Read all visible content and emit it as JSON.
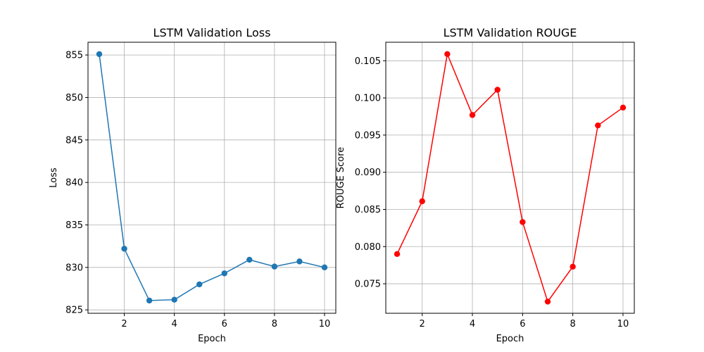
{
  "chart_data": [
    {
      "type": "line",
      "title": "LSTM Validation Loss",
      "xlabel": "Epoch",
      "ylabel": "Loss",
      "x": [
        1,
        2,
        3,
        4,
        5,
        6,
        7,
        8,
        9,
        10
      ],
      "series": [
        {
          "values": [
            855.1,
            832.2,
            826.1,
            826.2,
            828.0,
            829.3,
            830.9,
            830.1,
            830.7,
            830.0
          ],
          "color": "#1f77b4"
        }
      ],
      "xlim": [
        0.55,
        10.45
      ],
      "ylim": [
        824.6,
        856.5
      ],
      "xticks": [
        "2",
        "4",
        "6",
        "8",
        "10"
      ],
      "yticks": [
        "825",
        "830",
        "835",
        "840",
        "845",
        "850",
        "855"
      ],
      "grid": true
    },
    {
      "type": "line",
      "title": "LSTM Validation ROUGE",
      "xlabel": "Epoch",
      "ylabel": "ROUGE Score",
      "x": [
        1,
        2,
        3,
        4,
        5,
        6,
        7,
        8,
        9,
        10
      ],
      "series": [
        {
          "values": [
            0.079,
            0.0861,
            0.1059,
            0.0977,
            0.1011,
            0.0833,
            0.0726,
            0.0773,
            0.0963,
            0.0987
          ],
          "color": "#ff0000"
        }
      ],
      "xlim": [
        0.55,
        10.45
      ],
      "ylim": [
        0.07103,
        0.10749
      ],
      "xticks": [
        "2",
        "4",
        "6",
        "8",
        "10"
      ],
      "yticks": [
        "0.075",
        "0.080",
        "0.085",
        "0.090",
        "0.095",
        "0.100",
        "0.105"
      ],
      "grid": true
    }
  ]
}
